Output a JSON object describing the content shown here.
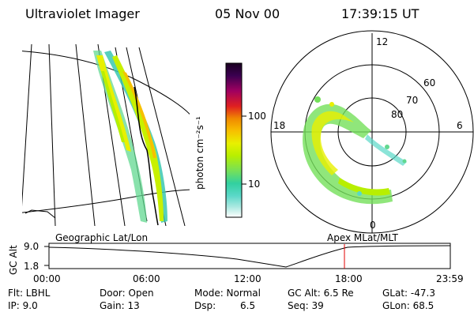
{
  "header": {
    "instrument": "Ultraviolet Imager",
    "date": "05 Nov 00",
    "time": "17:39:15 UT"
  },
  "colorbar": {
    "label": "photon cm⁻²s⁻¹",
    "ticks": [
      "100",
      "10"
    ],
    "colors": [
      "#1a0020",
      "#3a0050",
      "#7a0070",
      "#c00030",
      "#e04000",
      "#f08a00",
      "#f7c000",
      "#e8f000",
      "#b8ef00",
      "#74e05a",
      "#32d0a0",
      "#5ad8c8",
      "#a8e8e0",
      "#ffffff"
    ]
  },
  "polar_plot": {
    "mlt_labels": [
      "12",
      "18",
      "6",
      "0"
    ],
    "lat_labels": [
      "80",
      "70",
      "60"
    ]
  },
  "timeline": {
    "left_label": "Geographic Lat/Lon",
    "right_label": "Apex MLat/MLT",
    "axis_label": "GC Alt",
    "y_ticks": [
      "9.0",
      "1.8"
    ],
    "x_ticks": [
      "00:00",
      "06:00",
      "12:00",
      "18:00",
      "23:59"
    ],
    "current_time_marker": "17:39",
    "marker_color": "#e00000"
  },
  "info": {
    "flt": "Flt: LBHL",
    "ip": "IP:  9.0",
    "door": "Door: Open",
    "gain": "Gain: 13",
    "mode": "Mode: Normal",
    "dsp_label": "Dsp:",
    "dsp_value": "6.5",
    "gc_alt": "GC Alt: 6.5 Re",
    "seq": "Seq: 39",
    "glat": "GLat: -47.3",
    "glon": "GLon:  68.5"
  }
}
